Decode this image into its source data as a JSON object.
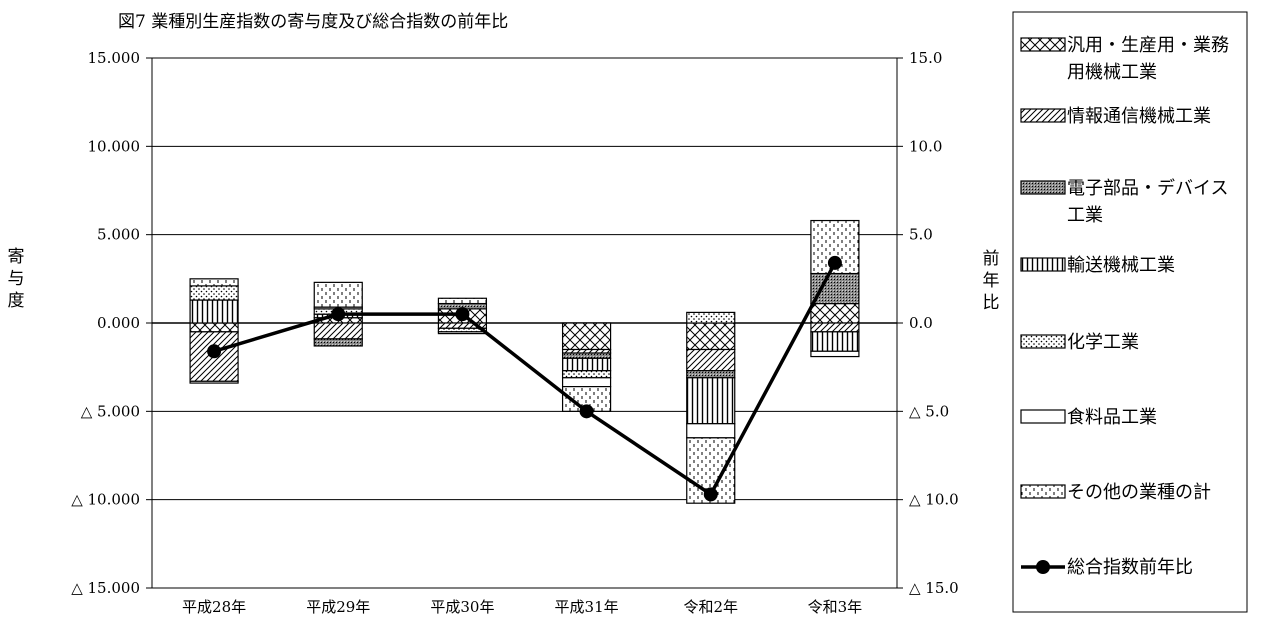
{
  "chart_data": {
    "type": "bar",
    "stacked": true,
    "title": "図7 業種別生産指数の寄与度及び総合指数の前年比",
    "ylabel_left": "寄与度",
    "ylabel_right": "前年比",
    "categories": [
      "平成28年",
      "平成29年",
      "平成30年",
      "平成31年",
      "令和2年",
      "令和3年"
    ],
    "ylim": [
      -15,
      15
    ],
    "y_left_ticks": [
      "15.000",
      "10.000",
      "5.000",
      "0.000",
      "△ 5.000",
      "△ 10.000",
      "△ 15.000"
    ],
    "y_right_ticks": [
      "15.0",
      "10.0",
      "5.0",
      "0.0",
      "△ 5.0",
      "△ 10.0",
      "△ 15.0"
    ],
    "grid": true,
    "legend_position": "right",
    "series": [
      {
        "name": "汎用・生産用・業務用機械工業",
        "pattern": "cross",
        "values": [
          -0.5,
          0.3,
          0.8,
          -1.5,
          -1.5,
          1.1
        ]
      },
      {
        "name": "情報通信機械工業",
        "pattern": "diag",
        "values": [
          -2.8,
          -0.9,
          -0.3,
          -0.2,
          -1.2,
          -0.5
        ]
      },
      {
        "name": "電子部品・デバイス工業",
        "pattern": "dots-dense",
        "values": [
          0.0,
          -0.4,
          0.3,
          -0.3,
          -0.4,
          1.7
        ]
      },
      {
        "name": "輸送機械工業",
        "pattern": "vlines",
        "values": [
          1.3,
          0.2,
          0.0,
          -0.7,
          -2.6,
          -1.1
        ]
      },
      {
        "name": "化学工業",
        "pattern": "dots",
        "values": [
          0.8,
          0.3,
          -0.2,
          -0.4,
          0.6,
          0.0
        ]
      },
      {
        "name": "食料品工業",
        "pattern": "plain",
        "values": [
          -0.1,
          0.1,
          -0.1,
          -0.5,
          -0.8,
          -0.3
        ]
      },
      {
        "name": "その他の業種の計",
        "pattern": "dash",
        "values": [
          0.4,
          1.4,
          0.3,
          -1.4,
          -3.7,
          3.0
        ]
      }
    ],
    "line": {
      "name": "総合指数前年比",
      "values": [
        -1.6,
        0.5,
        0.5,
        -5.0,
        -9.7,
        3.4
      ]
    }
  }
}
